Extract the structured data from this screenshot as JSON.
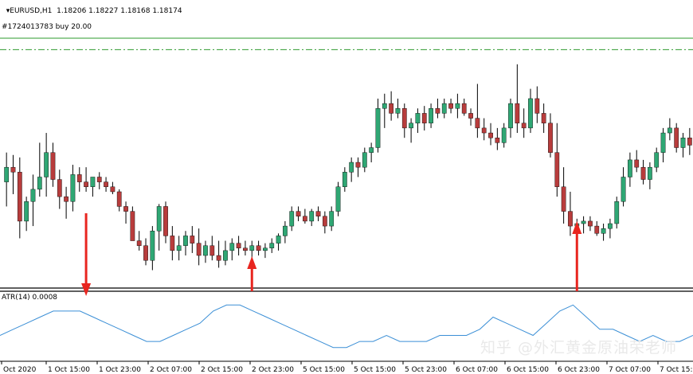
{
  "header": {
    "symbol_icon": "dropdown-triangle-icon",
    "quote": "EURUSD,H1  1.18206 1.18227 1.18168 1.18174",
    "order_label": "#1724013783 buy 20.00"
  },
  "indicator": {
    "label": "ATR(14) 0.0008"
  },
  "watermark": "知乎 @外汇黄金原油荣老师",
  "colors": {
    "bull": "#2fa774",
    "bear": "#b83c3c",
    "wick": "#000000",
    "atr_line": "#3b8fd6",
    "order_line": "#2e9b2e",
    "arrow": "#e8251f"
  },
  "chart_data": {
    "type": "candlestick",
    "x_tick_labels": [
      "Oct 2020",
      "1 Oct 15:00",
      "1 Oct 23:00",
      "2 Oct 07:00",
      "2 Oct 15:00",
      "2 Oct 23:00",
      "5 Oct 15:00",
      "5 Oct 15:00",
      "5 Oct 23:00",
      "6 Oct 07:00",
      "6 Oct 15:00",
      "6 Oct 23:00",
      "7 Oct 07:00",
      "7 Oct 15:00"
    ],
    "candles_ohlc": [
      [
        1.1718,
        1.173,
        1.1708,
        1.1724
      ],
      [
        1.1724,
        1.1729,
        1.1713,
        1.1722
      ],
      [
        1.1722,
        1.1728,
        1.1695,
        1.1702
      ],
      [
        1.1702,
        1.1712,
        1.1698,
        1.171
      ],
      [
        1.171,
        1.1721,
        1.17,
        1.1715
      ],
      [
        1.1715,
        1.1734,
        1.1712,
        1.172
      ],
      [
        1.172,
        1.1738,
        1.1712,
        1.173
      ],
      [
        1.173,
        1.1734,
        1.1716,
        1.1719
      ],
      [
        1.1719,
        1.1723,
        1.1707,
        1.1712
      ],
      [
        1.1712,
        1.1716,
        1.1703,
        1.171
      ],
      [
        1.171,
        1.1725,
        1.1706,
        1.1721
      ],
      [
        1.1721,
        1.1724,
        1.1714,
        1.1718
      ],
      [
        1.1718,
        1.1724,
        1.1714,
        1.1716
      ],
      [
        1.1716,
        1.172,
        1.1712,
        1.172
      ],
      [
        1.172,
        1.1722,
        1.1715,
        1.1718
      ],
      [
        1.1718,
        1.172,
        1.1714,
        1.1716
      ],
      [
        1.1716,
        1.1718,
        1.1713,
        1.1714
      ],
      [
        1.1714,
        1.1715,
        1.1706,
        1.1708
      ],
      [
        1.1708,
        1.171,
        1.1701,
        1.1706
      ],
      [
        1.1706,
        1.1708,
        1.1697,
        1.1694
      ],
      [
        1.1694,
        1.1698,
        1.169,
        1.1692
      ],
      [
        1.1692,
        1.1695,
        1.1684,
        1.1686
      ],
      [
        1.1686,
        1.17,
        1.1682,
        1.1698
      ],
      [
        1.1698,
        1.1709,
        1.169,
        1.1708
      ],
      [
        1.1708,
        1.171,
        1.1693,
        1.1696
      ],
      [
        1.1696,
        1.17,
        1.1686,
        1.169
      ],
      [
        1.169,
        1.1696,
        1.1686,
        1.1692
      ],
      [
        1.1692,
        1.1698,
        1.1688,
        1.1696
      ],
      [
        1.1696,
        1.17,
        1.1689,
        1.1693
      ],
      [
        1.1693,
        1.1699,
        1.1684,
        1.1688
      ],
      [
        1.1688,
        1.1694,
        1.1685,
        1.1692
      ],
      [
        1.1692,
        1.1696,
        1.1686,
        1.1688
      ],
      [
        1.1688,
        1.1694,
        1.1683,
        1.1686
      ],
      [
        1.1686,
        1.1694,
        1.1684,
        1.169
      ],
      [
        1.169,
        1.1695,
        1.1686,
        1.1693
      ],
      [
        1.1693,
        1.1696,
        1.1688,
        1.1691
      ],
      [
        1.1691,
        1.1694,
        1.1688,
        1.169
      ],
      [
        1.169,
        1.1694,
        1.1686,
        1.1692
      ],
      [
        1.1692,
        1.1694,
        1.1688,
        1.169
      ],
      [
        1.169,
        1.1693,
        1.1687,
        1.1691
      ],
      [
        1.1691,
        1.1695,
        1.1689,
        1.1693
      ],
      [
        1.1693,
        1.1697,
        1.169,
        1.1696
      ],
      [
        1.1696,
        1.1702,
        1.1693,
        1.17
      ],
      [
        1.17,
        1.1708,
        1.1698,
        1.1706
      ],
      [
        1.1706,
        1.1708,
        1.1702,
        1.1704
      ],
      [
        1.1704,
        1.1707,
        1.1701,
        1.1702
      ],
      [
        1.1702,
        1.1707,
        1.17,
        1.1706
      ],
      [
        1.1706,
        1.1708,
        1.1702,
        1.1704
      ],
      [
        1.1704,
        1.1706,
        1.1697,
        1.17
      ],
      [
        1.17,
        1.1708,
        1.1698,
        1.1706
      ],
      [
        1.1706,
        1.1718,
        1.1704,
        1.1716
      ],
      [
        1.1716,
        1.1724,
        1.1714,
        1.1722
      ],
      [
        1.1722,
        1.1728,
        1.1718,
        1.1726
      ],
      [
        1.1726,
        1.1728,
        1.172,
        1.1724
      ],
      [
        1.1724,
        1.1732,
        1.1722,
        1.173
      ],
      [
        1.173,
        1.1734,
        1.1726,
        1.1732
      ],
      [
        1.1732,
        1.1752,
        1.173,
        1.1748
      ],
      [
        1.1748,
        1.1754,
        1.174,
        1.175
      ],
      [
        1.175,
        1.1755,
        1.1743,
        1.1746
      ],
      [
        1.1746,
        1.1752,
        1.1744,
        1.1748
      ],
      [
        1.1748,
        1.175,
        1.1736,
        1.174
      ],
      [
        1.174,
        1.1744,
        1.1734,
        1.1742
      ],
      [
        1.1742,
        1.1748,
        1.1738,
        1.1746
      ],
      [
        1.1746,
        1.1749,
        1.1739,
        1.1742
      ],
      [
        1.1742,
        1.175,
        1.174,
        1.1748
      ],
      [
        1.1748,
        1.1752,
        1.1744,
        1.1746
      ],
      [
        1.1746,
        1.1752,
        1.1744,
        1.175
      ],
      [
        1.175,
        1.1752,
        1.1746,
        1.1748
      ],
      [
        1.1748,
        1.1754,
        1.1744,
        1.175
      ],
      [
        1.175,
        1.1752,
        1.1745,
        1.1746
      ],
      [
        1.1746,
        1.1748,
        1.1741,
        1.1744
      ],
      [
        1.1744,
        1.1758,
        1.1736,
        1.174
      ],
      [
        1.174,
        1.1744,
        1.1735,
        1.1738
      ],
      [
        1.1738,
        1.1742,
        1.1733,
        1.1736
      ],
      [
        1.1736,
        1.174,
        1.1731,
        1.1734
      ],
      [
        1.1734,
        1.1742,
        1.1732,
        1.174
      ],
      [
        1.174,
        1.1752,
        1.1736,
        1.175
      ],
      [
        1.175,
        1.1766,
        1.1738,
        1.1742
      ],
      [
        1.1742,
        1.1748,
        1.1736,
        1.174
      ],
      [
        1.174,
        1.1756,
        1.1738,
        1.1752
      ],
      [
        1.1752,
        1.1757,
        1.1742,
        1.1746
      ],
      [
        1.1746,
        1.175,
        1.1738,
        1.1742
      ],
      [
        1.1742,
        1.1746,
        1.1728,
        1.173
      ],
      [
        1.173,
        1.1742,
        1.1712,
        1.1716
      ],
      [
        1.1716,
        1.1724,
        1.1701,
        1.1706
      ],
      [
        1.1706,
        1.1714,
        1.1696,
        1.17
      ],
      [
        1.17,
        1.1703,
        1.1696,
        1.1701
      ],
      [
        1.1701,
        1.1704,
        1.1697,
        1.1702
      ],
      [
        1.1702,
        1.1704,
        1.1698,
        1.17
      ],
      [
        1.17,
        1.1702,
        1.1696,
        1.1697
      ],
      [
        1.1697,
        1.1701,
        1.1694,
        1.1699
      ],
      [
        1.1699,
        1.1703,
        1.1695,
        1.1701
      ],
      [
        1.1701,
        1.1712,
        1.1699,
        1.171
      ],
      [
        1.171,
        1.1724,
        1.1708,
        1.172
      ],
      [
        1.172,
        1.173,
        1.1716,
        1.1727
      ],
      [
        1.1727,
        1.1731,
        1.1722,
        1.1724
      ],
      [
        1.1724,
        1.1727,
        1.1717,
        1.1719
      ],
      [
        1.1719,
        1.1726,
        1.1715,
        1.1724
      ],
      [
        1.1724,
        1.1732,
        1.1722,
        1.173
      ],
      [
        1.173,
        1.174,
        1.1726,
        1.1738
      ],
      [
        1.1738,
        1.1744,
        1.1735,
        1.174
      ],
      [
        1.174,
        1.1742,
        1.173,
        1.1732
      ],
      [
        1.1732,
        1.1738,
        1.1728,
        1.1736
      ],
      [
        1.1736,
        1.174,
        1.1729,
        1.1733
      ]
    ],
    "atr_values": [
      0.0008,
      0.0009,
      0.001,
      0.0011,
      0.0012,
      0.0012,
      0.0012,
      0.0011,
      0.001,
      0.0009,
      0.0008,
      0.0007,
      0.0007,
      0.0008,
      0.0009,
      0.001,
      0.0012,
      0.0013,
      0.0013,
      0.0012,
      0.0011,
      0.001,
      0.0009,
      0.0008,
      0.0007,
      0.0006,
      0.0006,
      0.0007,
      0.0007,
      0.0008,
      0.0007,
      0.0007,
      0.0007,
      0.0008,
      0.0008,
      0.0008,
      0.0009,
      0.0011,
      0.001,
      0.0009,
      0.0008,
      0.001,
      0.0012,
      0.0013,
      0.0011,
      0.0009,
      0.0009,
      0.0008,
      0.0007,
      0.0008,
      0.0007,
      0.0007,
      0.0008
    ],
    "signal_arrows": [
      {
        "type": "down",
        "candle_index": 12
      },
      {
        "type": "up",
        "candle_index": 37
      },
      {
        "type": "up",
        "candle_index": 86
      }
    ],
    "order_price": 1.1772,
    "ylim": [
      1.1676,
      1.1776
    ],
    "atr_ylim": [
      0.0004,
      0.0015
    ],
    "grid": false
  }
}
